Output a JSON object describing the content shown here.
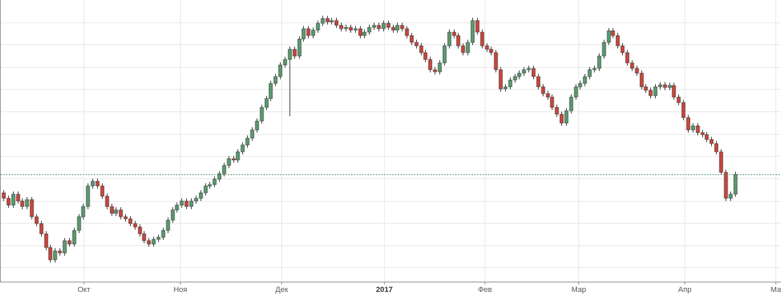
{
  "chart_data": {
    "type": "candlestick",
    "up_color": "#5a9a6e",
    "down_color": "#c8473c",
    "grid": true,
    "xlim": [
      -0.73,
      165.85
    ],
    "ylim": [
      0,
      412
    ],
    "xticks": [
      {
        "value": 17.1,
        "label": "Окт"
      },
      {
        "value": 37.7,
        "label": "Ноя"
      },
      {
        "value": 59.3,
        "label": "Дек"
      },
      {
        "value": 81.2,
        "label": "2017"
      },
      {
        "value": 102.6,
        "label": "Фев"
      },
      {
        "value": 122.6,
        "label": "Мар"
      },
      {
        "value": 145.3,
        "label": "Апр"
      },
      {
        "value": 164.7,
        "label": "Ма"
      }
    ],
    "yticks": [
      21,
      53,
      86,
      118,
      151,
      184,
      216,
      249,
      282,
      314,
      347,
      379
    ],
    "open": [
      130,
      122,
      112,
      128,
      118,
      110,
      120,
      95,
      85,
      70,
      50,
      32,
      45,
      42,
      60,
      55,
      75,
      95,
      110,
      140,
      147,
      140,
      125,
      110,
      100,
      105,
      95,
      92,
      85,
      80,
      70,
      60,
      55,
      62,
      65,
      75,
      90,
      105,
      112,
      118,
      110,
      118,
      122,
      130,
      140,
      142,
      150,
      158,
      170,
      180,
      178,
      190,
      200,
      210,
      222,
      235,
      255,
      268,
      290,
      300,
      317,
      325,
      340,
      330,
      355,
      370,
      360,
      368,
      378,
      385,
      380,
      382,
      375,
      370,
      372,
      368,
      370,
      360,
      365,
      372,
      375,
      370,
      378,
      372,
      368,
      375,
      370,
      360,
      350,
      345,
      335,
      325,
      310,
      307,
      320,
      345,
      365,
      360,
      345,
      335,
      350,
      382,
      365,
      345,
      340,
      335,
      310,
      282,
      285,
      295,
      300,
      305,
      310,
      312,
      300,
      285,
      275,
      270,
      255,
      245,
      232,
      250,
      270,
      285,
      290,
      300,
      310,
      312,
      330,
      350,
      367,
      360,
      345,
      335,
      320,
      312,
      305,
      285,
      280,
      272,
      285,
      288,
      284,
      287,
      270,
      262,
      240,
      222,
      228,
      218,
      215,
      208,
      202,
      190,
      160,
      122,
      128
    ],
    "high": [
      134,
      126,
      132,
      132,
      122,
      124,
      124,
      99,
      89,
      74,
      54,
      49,
      49,
      64,
      64,
      79,
      99,
      114,
      144,
      151,
      151,
      144,
      129,
      114,
      109,
      109,
      99,
      96,
      89,
      84,
      74,
      64,
      66,
      69,
      79,
      94,
      109,
      116,
      122,
      122,
      122,
      126,
      134,
      144,
      146,
      154,
      162,
      174,
      184,
      184,
      194,
      204,
      214,
      226,
      239,
      259,
      272,
      294,
      304,
      321,
      329,
      344,
      344,
      359,
      374,
      374,
      372,
      382,
      389,
      389,
      386,
      386,
      379,
      376,
      376,
      374,
      374,
      369,
      376,
      379,
      379,
      382,
      382,
      376,
      379,
      379,
      374,
      364,
      354,
      349,
      339,
      329,
      314,
      324,
      349,
      369,
      369,
      364,
      349,
      354,
      386,
      386,
      369,
      349,
      344,
      339,
      314,
      289,
      299,
      304,
      309,
      314,
      316,
      316,
      304,
      289,
      279,
      274,
      259,
      249,
      254,
      274,
      289,
      294,
      304,
      314,
      316,
      334,
      354,
      371,
      371,
      364,
      349,
      339,
      324,
      316,
      309,
      289,
      284,
      289,
      292,
      292,
      291,
      291,
      274,
      266,
      244,
      232,
      232,
      222,
      219,
      212,
      206,
      194,
      164,
      132,
      161
    ],
    "low": [
      118,
      108,
      108,
      114,
      106,
      106,
      91,
      81,
      66,
      46,
      28,
      28,
      38,
      38,
      51,
      51,
      71,
      91,
      106,
      136,
      136,
      121,
      106,
      96,
      96,
      91,
      88,
      81,
      76,
      66,
      56,
      51,
      51,
      58,
      61,
      71,
      86,
      101,
      108,
      106,
      106,
      114,
      118,
      126,
      136,
      138,
      146,
      154,
      166,
      174,
      174,
      186,
      196,
      206,
      218,
      231,
      251,
      264,
      286,
      296,
      313,
      242,
      326,
      326,
      351,
      356,
      356,
      364,
      374,
      376,
      376,
      371,
      366,
      366,
      364,
      364,
      356,
      356,
      361,
      368,
      366,
      366,
      368,
      364,
      364,
      366,
      356,
      346,
      341,
      331,
      321,
      306,
      303,
      303,
      316,
      341,
      356,
      341,
      331,
      331,
      346,
      361,
      341,
      336,
      331,
      306,
      278,
      278,
      281,
      291,
      296,
      301,
      306,
      296,
      281,
      271,
      266,
      251,
      241,
      228,
      228,
      246,
      266,
      281,
      286,
      296,
      306,
      308,
      326,
      346,
      356,
      341,
      331,
      316,
      308,
      301,
      281,
      276,
      268,
      268,
      281,
      280,
      280,
      266,
      258,
      236,
      218,
      218,
      214,
      211,
      204,
      198,
      186,
      156,
      118,
      118,
      124
    ],
    "close": [
      122,
      112,
      128,
      118,
      110,
      120,
      95,
      85,
      70,
      50,
      32,
      45,
      42,
      60,
      55,
      75,
      95,
      110,
      140,
      147,
      140,
      125,
      110,
      100,
      105,
      95,
      92,
      85,
      80,
      70,
      60,
      55,
      62,
      65,
      75,
      90,
      105,
      112,
      118,
      110,
      118,
      122,
      130,
      140,
      142,
      150,
      158,
      170,
      180,
      178,
      190,
      200,
      210,
      222,
      235,
      255,
      268,
      290,
      300,
      317,
      325,
      340,
      330,
      355,
      370,
      360,
      368,
      378,
      385,
      380,
      382,
      375,
      370,
      372,
      368,
      370,
      360,
      365,
      372,
      375,
      370,
      378,
      372,
      368,
      375,
      370,
      360,
      350,
      345,
      335,
      325,
      310,
      307,
      320,
      345,
      365,
      360,
      345,
      335,
      350,
      382,
      365,
      345,
      340,
      335,
      310,
      282,
      285,
      295,
      300,
      305,
      310,
      312,
      300,
      285,
      275,
      270,
      255,
      245,
      232,
      250,
      270,
      285,
      290,
      300,
      310,
      312,
      330,
      350,
      367,
      360,
      345,
      335,
      320,
      312,
      305,
      285,
      280,
      272,
      285,
      288,
      284,
      287,
      270,
      262,
      240,
      222,
      228,
      218,
      215,
      208,
      202,
      190,
      160,
      122,
      128,
      157
    ]
  }
}
